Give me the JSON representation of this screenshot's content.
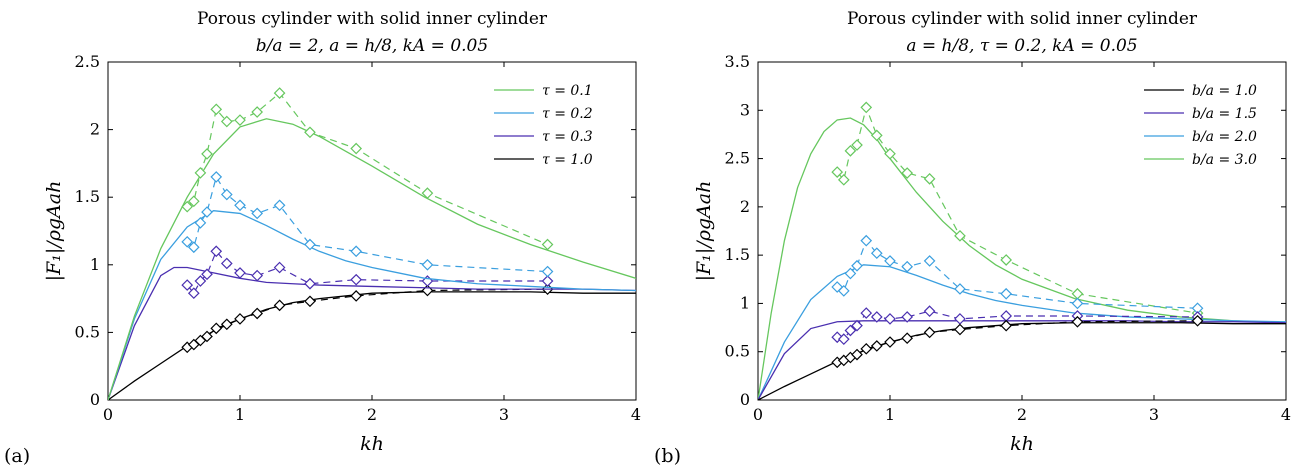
{
  "chart_data": [
    {
      "type": "line",
      "panel_label": "(a)",
      "title_line1": "Porous cylinder with solid inner cylinder",
      "title_line2": "b/a = 2, a = h/8, kA = 0.05",
      "xlabel": "kh",
      "ylabel": "|F₁|/ρgAah",
      "xlim": [
        0,
        4
      ],
      "ylim": [
        0,
        2.5
      ],
      "xticks": [
        0,
        1,
        2,
        3,
        4
      ],
      "yticks": [
        0,
        0.5,
        1,
        1.5,
        2,
        2.5
      ],
      "xtick_labels": [
        "0",
        "1",
        "2",
        "3",
        "4"
      ],
      "ytick_labels": [
        "0",
        "0.5",
        "1",
        "1.5",
        "2",
        "2.5"
      ],
      "legend_position": "top-right",
      "series": [
        {
          "name": "τ = 0.1",
          "color": "#66c75e",
          "theory": {
            "x": [
              0,
              0.2,
              0.4,
              0.6,
              0.8,
              1.0,
              1.2,
              1.4,
              1.6,
              1.8,
              2.0,
              2.4,
              2.8,
              3.2,
              3.6,
              4.0
            ],
            "y": [
              0,
              0.62,
              1.12,
              1.5,
              1.82,
              2.02,
              2.08,
              2.04,
              1.95,
              1.84,
              1.73,
              1.5,
              1.3,
              1.15,
              1.02,
              0.9
            ]
          },
          "experiment": {
            "x": [
              0.6,
              0.65,
              0.7,
              0.75,
              0.82,
              0.9,
              1.0,
              1.13,
              1.3,
              1.53,
              1.88,
              2.42,
              3.33
            ],
            "y": [
              1.43,
              1.47,
              1.68,
              1.82,
              2.15,
              2.06,
              2.07,
              2.13,
              2.27,
              1.98,
              1.86,
              1.53,
              1.15
            ]
          }
        },
        {
          "name": "τ = 0.2",
          "color": "#3b9fdf",
          "theory": {
            "x": [
              0,
              0.2,
              0.4,
              0.6,
              0.8,
              1.0,
              1.2,
              1.4,
              1.6,
              1.8,
              2.0,
              2.4,
              2.8,
              3.2,
              3.6,
              4.0
            ],
            "y": [
              0,
              0.6,
              1.04,
              1.28,
              1.4,
              1.38,
              1.29,
              1.19,
              1.1,
              1.03,
              0.98,
              0.9,
              0.86,
              0.84,
              0.82,
              0.81
            ]
          },
          "experiment": {
            "x": [
              0.6,
              0.65,
              0.7,
              0.75,
              0.82,
              0.9,
              1.0,
              1.13,
              1.3,
              1.53,
              1.88,
              2.42,
              3.33
            ],
            "y": [
              1.17,
              1.13,
              1.31,
              1.39,
              1.65,
              1.52,
              1.44,
              1.38,
              1.44,
              1.15,
              1.1,
              1.0,
              0.95
            ]
          }
        },
        {
          "name": "τ = 0.3",
          "color": "#4a2fb0",
          "theory": {
            "x": [
              0,
              0.2,
              0.4,
              0.5,
              0.6,
              0.8,
              1.0,
              1.2,
              1.4,
              1.6,
              2.0,
              2.4,
              2.8,
              3.2,
              3.6,
              4.0
            ],
            "y": [
              0,
              0.55,
              0.92,
              0.98,
              0.98,
              0.94,
              0.9,
              0.87,
              0.86,
              0.85,
              0.84,
              0.83,
              0.82,
              0.82,
              0.82,
              0.81
            ]
          },
          "experiment": {
            "x": [
              0.6,
              0.65,
              0.7,
              0.75,
              0.82,
              0.9,
              1.0,
              1.13,
              1.3,
              1.53,
              1.88,
              2.42,
              3.33
            ],
            "y": [
              0.85,
              0.79,
              0.88,
              0.93,
              1.1,
              1.01,
              0.94,
              0.92,
              0.98,
              0.86,
              0.89,
              0.88,
              0.88
            ]
          }
        },
        {
          "name": "τ = 1.0",
          "color": "#000000",
          "theory": {
            "x": [
              0,
              0.2,
              0.4,
              0.6,
              0.8,
              1.0,
              1.2,
              1.4,
              1.6,
              2.0,
              2.4,
              2.8,
              3.2,
              3.6,
              4.0
            ],
            "y": [
              0,
              0.14,
              0.27,
              0.4,
              0.51,
              0.6,
              0.67,
              0.72,
              0.75,
              0.79,
              0.8,
              0.8,
              0.8,
              0.79,
              0.79
            ]
          },
          "experiment": {
            "x": [
              0.6,
              0.65,
              0.7,
              0.75,
              0.82,
              0.9,
              1.0,
              1.13,
              1.3,
              1.53,
              1.88,
              2.42,
              3.33
            ],
            "y": [
              0.39,
              0.41,
              0.44,
              0.47,
              0.53,
              0.56,
              0.6,
              0.64,
              0.7,
              0.73,
              0.77,
              0.81,
              0.82
            ]
          }
        }
      ]
    },
    {
      "type": "line",
      "panel_label": "(b)",
      "title_line1": "Porous cylinder with solid inner cylinder",
      "title_line2": "a = h/8, τ = 0.2, kA = 0.05",
      "xlabel": "kh",
      "ylabel": "|F₁|/ρgAah",
      "xlim": [
        0,
        4
      ],
      "ylim": [
        0,
        3.5
      ],
      "xticks": [
        0,
        1,
        2,
        3,
        4
      ],
      "yticks": [
        0,
        0.5,
        1,
        1.5,
        2,
        2.5,
        3,
        3.5
      ],
      "xtick_labels": [
        "0",
        "1",
        "2",
        "3",
        "4"
      ],
      "ytick_labels": [
        "0",
        "0.5",
        "1",
        "1.5",
        "2",
        "2.5",
        "3",
        "3.5"
      ],
      "legend_position": "top-right",
      "series": [
        {
          "name": "b/a = 1.0",
          "color": "#000000",
          "theory": {
            "x": [
              0,
              0.2,
              0.4,
              0.6,
              0.8,
              1.0,
              1.2,
              1.4,
              1.6,
              2.0,
              2.4,
              2.8,
              3.2,
              3.6,
              4.0
            ],
            "y": [
              0,
              0.14,
              0.27,
              0.4,
              0.51,
              0.6,
              0.67,
              0.72,
              0.75,
              0.79,
              0.8,
              0.8,
              0.8,
              0.79,
              0.79
            ]
          },
          "experiment": {
            "x": [
              0.6,
              0.65,
              0.7,
              0.75,
              0.82,
              0.9,
              1.0,
              1.13,
              1.3,
              1.53,
              1.88,
              2.42,
              3.33
            ],
            "y": [
              0.39,
              0.41,
              0.44,
              0.47,
              0.53,
              0.56,
              0.6,
              0.64,
              0.7,
              0.73,
              0.77,
              0.81,
              0.82
            ]
          }
        },
        {
          "name": "b/a = 1.5",
          "color": "#4a2fb0",
          "theory": {
            "x": [
              0,
              0.2,
              0.4,
              0.6,
              0.8,
              1.0,
              1.2,
              1.4,
              1.6,
              2.0,
              2.4,
              2.8,
              3.2,
              3.6,
              4.0
            ],
            "y": [
              0,
              0.48,
              0.74,
              0.81,
              0.82,
              0.82,
              0.82,
              0.82,
              0.82,
              0.82,
              0.82,
              0.82,
              0.81,
              0.81,
              0.8
            ]
          },
          "experiment": {
            "x": [
              0.6,
              0.65,
              0.7,
              0.75,
              0.82,
              0.9,
              1.0,
              1.13,
              1.3,
              1.53,
              1.88,
              2.42,
              3.33
            ],
            "y": [
              0.65,
              0.63,
              0.72,
              0.77,
              0.9,
              0.86,
              0.84,
              0.86,
              0.92,
              0.84,
              0.87,
              0.87,
              0.86
            ]
          }
        },
        {
          "name": "b/a = 2.0",
          "color": "#3b9fdf",
          "theory": {
            "x": [
              0,
              0.2,
              0.4,
              0.6,
              0.8,
              1.0,
              1.2,
              1.4,
              1.6,
              1.8,
              2.0,
              2.4,
              2.8,
              3.2,
              3.6,
              4.0
            ],
            "y": [
              0,
              0.6,
              1.04,
              1.28,
              1.4,
              1.38,
              1.29,
              1.19,
              1.1,
              1.03,
              0.98,
              0.9,
              0.86,
              0.84,
              0.82,
              0.81
            ]
          },
          "experiment": {
            "x": [
              0.6,
              0.65,
              0.7,
              0.75,
              0.82,
              0.9,
              1.0,
              1.13,
              1.3,
              1.53,
              1.88,
              2.42,
              3.33
            ],
            "y": [
              1.17,
              1.13,
              1.31,
              1.39,
              1.65,
              1.52,
              1.44,
              1.38,
              1.44,
              1.15,
              1.1,
              1.0,
              0.95
            ]
          }
        },
        {
          "name": "b/a = 3.0",
          "color": "#66c75e",
          "theory": {
            "x": [
              0,
              0.1,
              0.2,
              0.3,
              0.4,
              0.5,
              0.6,
              0.7,
              0.8,
              0.9,
              1.0,
              1.2,
              1.4,
              1.6,
              1.8,
              2.0,
              2.4,
              2.8,
              3.2,
              3.6,
              4.0
            ],
            "y": [
              0,
              0.9,
              1.65,
              2.2,
              2.55,
              2.78,
              2.9,
              2.92,
              2.85,
              2.7,
              2.5,
              2.15,
              1.85,
              1.6,
              1.4,
              1.25,
              1.05,
              0.93,
              0.86,
              0.82,
              0.8
            ]
          },
          "experiment": {
            "x": [
              0.6,
              0.65,
              0.7,
              0.75,
              0.82,
              0.9,
              1.0,
              1.13,
              1.3,
              1.53,
              1.88,
              2.42,
              3.33
            ],
            "y": [
              2.36,
              2.28,
              2.58,
              2.64,
              3.03,
              2.74,
              2.55,
              2.35,
              2.29,
              1.7,
              1.45,
              1.1,
              0.9
            ]
          }
        }
      ]
    }
  ]
}
